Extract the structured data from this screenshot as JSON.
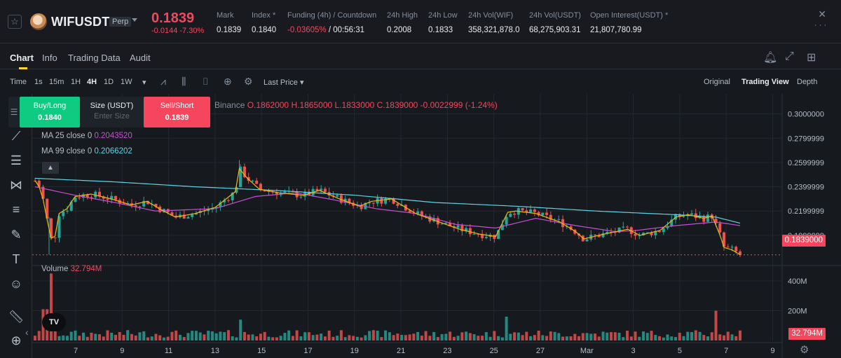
{
  "header": {
    "star_icon": "star-icon",
    "symbol": "WIFUSDT",
    "contract_type": "Perp",
    "last_price": "0.1839",
    "change_abs": "-0.0144",
    "change_pct": "-7.30%",
    "stats": [
      {
        "label": "Mark",
        "value": "0.1839"
      },
      {
        "label": "Index *",
        "value": "0.1840"
      },
      {
        "label": "Funding (4h) / Countdown",
        "value": "-0.03605%",
        "value2": "/ 00:56:31"
      },
      {
        "label": "24h High",
        "value": "0.2008"
      },
      {
        "label": "24h Low",
        "value": "0.1833"
      },
      {
        "label": "24h Vol(WIF)",
        "value": "358,321,878.0"
      },
      {
        "label": "24h Vol(USDT)",
        "value": "68,275,903.31"
      },
      {
        "label": "Open Interest(USDT) *",
        "value": "21,807,780.99"
      }
    ],
    "close_glyph": "✕",
    "menu_glyph": "☰"
  },
  "tabs": {
    "items": [
      "Chart",
      "Info",
      "Trading Data",
      "Audit"
    ],
    "active": "Chart"
  },
  "toolbar": {
    "time_label": "Time",
    "intervals": [
      "1s",
      "15m",
      "1H",
      "4H",
      "1D",
      "1W"
    ],
    "active_interval": "4H",
    "price_source": "Last Price",
    "views": [
      "Original",
      "Trading View",
      "Depth"
    ],
    "active_view": "Trading View"
  },
  "order_panel": {
    "buy_label": "Buy/Long",
    "buy_price": "0.1840",
    "size_label": "Size (USDT)",
    "size_placeholder": "Enter Size",
    "sell_label": "Sell/Short",
    "sell_price": "0.1839"
  },
  "legend": {
    "exchange": "Binance",
    "open": "O.1862000",
    "high": "H.1865000",
    "low": "L.1833000",
    "close": "C.1839000",
    "change": "-0.0022999 (-1.24%)",
    "ma25_label": "MA 25 close 0",
    "ma25_value": "0.2043520",
    "ma99_label": "MA 99 close 0",
    "ma99_value": "0.2066202",
    "volume_label": "Volume",
    "volume_value": "32.794M"
  },
  "colors": {
    "up": "#26a69a",
    "down": "#ef5350",
    "ma7": "#f0b90b",
    "ma25": "#c64fd3",
    "ma99": "#5fd3e6",
    "accent": "#fcd535"
  },
  "chart_data": {
    "type": "candlestick",
    "interval": "4H",
    "price_axis_ticks": [
      "0.3000000",
      "0.2799999",
      "0.2599999",
      "0.2399999",
      "0.2199999",
      "0.1999999"
    ],
    "current_price_label": "0.1839000",
    "volume_axis_ticks": [
      "400M",
      "200M"
    ],
    "current_volume_label": "32.794M",
    "x_ticks": [
      "7",
      "9",
      "11",
      "13",
      "15",
      "17",
      "19",
      "21",
      "23",
      "25",
      "27",
      "Mar",
      "3",
      "5",
      "7",
      "9"
    ],
    "price_ylim": [
      0.178,
      0.305
    ],
    "volume_ylim": [
      0,
      480
    ],
    "close_path": [
      [
        0.245,
        0
      ],
      [
        0.238,
        3
      ],
      [
        0.205,
        7
      ],
      [
        0.19,
        9
      ],
      [
        0.218,
        12
      ],
      [
        0.222,
        16
      ],
      [
        0.232,
        20
      ],
      [
        0.234,
        28
      ],
      [
        0.23,
        38
      ],
      [
        0.225,
        48
      ],
      [
        0.228,
        56
      ],
      [
        0.222,
        62
      ],
      [
        0.215,
        70
      ],
      [
        0.218,
        80
      ],
      [
        0.223,
        90
      ],
      [
        0.236,
        100
      ],
      [
        0.255,
        102
      ],
      [
        0.247,
        106
      ],
      [
        0.238,
        112
      ],
      [
        0.235,
        122
      ],
      [
        0.233,
        134
      ],
      [
        0.237,
        142
      ],
      [
        0.23,
        152
      ],
      [
        0.224,
        162
      ],
      [
        0.228,
        168
      ],
      [
        0.23,
        178
      ],
      [
        0.218,
        190
      ],
      [
        0.212,
        200
      ],
      [
        0.205,
        212
      ],
      [
        0.201,
        222
      ],
      [
        0.199,
        230
      ],
      [
        0.219,
        236
      ],
      [
        0.22,
        240
      ],
      [
        0.218,
        250
      ],
      [
        0.211,
        262
      ],
      [
        0.203,
        270
      ],
      [
        0.197,
        274
      ],
      [
        0.201,
        284
      ],
      [
        0.205,
        296
      ],
      [
        0.2,
        302
      ],
      [
        0.204,
        312
      ],
      [
        0.215,
        320
      ],
      [
        0.217,
        326
      ],
      [
        0.214,
        334
      ],
      [
        0.216,
        338
      ],
      [
        0.2,
        342
      ],
      [
        0.19,
        344
      ],
      [
        0.188,
        348
      ],
      [
        0.184,
        352
      ]
    ],
    "ma99_path": [
      [
        0.247,
        0
      ],
      [
        0.244,
        40
      ],
      [
        0.24,
        80
      ],
      [
        0.237,
        120
      ],
      [
        0.233,
        160
      ],
      [
        0.227,
        200
      ],
      [
        0.224,
        240
      ],
      [
        0.22,
        280
      ],
      [
        0.217,
        320
      ],
      [
        0.215,
        340
      ],
      [
        0.21,
        352
      ]
    ],
    "ma25_path": [
      [
        0.24,
        0
      ],
      [
        0.233,
        20
      ],
      [
        0.227,
        40
      ],
      [
        0.22,
        60
      ],
      [
        0.222,
        90
      ],
      [
        0.232,
        110
      ],
      [
        0.235,
        130
      ],
      [
        0.229,
        150
      ],
      [
        0.222,
        170
      ],
      [
        0.218,
        190
      ],
      [
        0.209,
        210
      ],
      [
        0.206,
        230
      ],
      [
        0.214,
        250
      ],
      [
        0.208,
        270
      ],
      [
        0.203,
        290
      ],
      [
        0.204,
        300
      ],
      [
        0.208,
        320
      ],
      [
        0.211,
        340
      ],
      [
        0.208,
        352
      ]
    ],
    "x_span": 352,
    "volume_spikes": [
      {
        "x": 7,
        "value": 450,
        "up": true
      },
      {
        "x": 5,
        "value": 210,
        "up": false
      },
      {
        "x": 102,
        "value": 140,
        "up": true
      },
      {
        "x": 236,
        "value": 160,
        "up": true
      },
      {
        "x": 340,
        "value": 200,
        "up": false
      }
    ]
  }
}
